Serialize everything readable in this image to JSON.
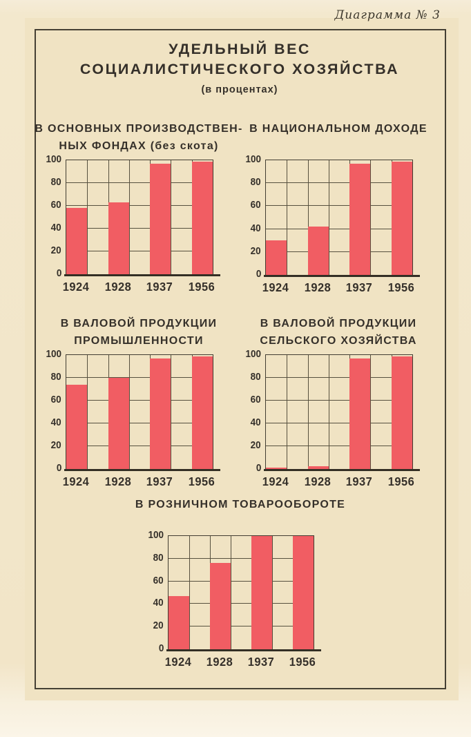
{
  "document": {
    "corner_label": "Диаграмма № 3",
    "title_lines": [
      "УДЕЛЬНЫЙ ВЕС",
      "СОЦИАЛИСТИЧЕСКОГО ХОЗЯЙСТВА"
    ],
    "subtitle": "(в процентах)"
  },
  "colors": {
    "bar_red": "#f15d63",
    "paper": "#f0e3c3",
    "ink": "#322d23",
    "grid_line": "#56503e"
  },
  "chart_data": [
    {
      "type": "bar",
      "title": "В ОСНОВНЫХ ПРОИЗВОДСТВЕННЫХ ФОНДАХ (без скота)",
      "title_lines": [
        "В ОСНОВНЫХ ПРОИЗВОДСТВЕН-",
        "НЫХ ФОНДАХ (без скота)"
      ],
      "categories": [
        "1924",
        "1928",
        "1937",
        "1956"
      ],
      "values": [
        58,
        63,
        97,
        99
      ],
      "ylim": [
        0,
        100
      ],
      "yticks": [
        0,
        20,
        40,
        60,
        80,
        100
      ],
      "grid": true,
      "legend": null
    },
    {
      "type": "bar",
      "title": "В НАЦИОНАЛЬНОМ ДОХОДЕ",
      "title_lines": [
        "В НАЦИОНАЛЬНОМ ДОХОДЕ"
      ],
      "categories": [
        "1924",
        "1928",
        "1937",
        "1956"
      ],
      "values": [
        30,
        42,
        97,
        99
      ],
      "ylim": [
        0,
        100
      ],
      "yticks": [
        0,
        20,
        40,
        60,
        80,
        100
      ],
      "grid": true,
      "legend": null
    },
    {
      "type": "bar",
      "title": "В ВАЛОВОЙ ПРОДУКЦИИ ПРОМЫШЛЕННОСТИ",
      "title_lines": [
        "В ВАЛОВОЙ ПРОДУКЦИИ",
        "ПРОМЫШЛЕННОСТИ"
      ],
      "categories": [
        "1924",
        "1928",
        "1937",
        "1956"
      ],
      "values": [
        74,
        80,
        97,
        99
      ],
      "ylim": [
        0,
        100
      ],
      "yticks": [
        0,
        20,
        40,
        60,
        80,
        100
      ],
      "grid": true,
      "legend": null
    },
    {
      "type": "bar",
      "title": "В ВАЛОВОЙ ПРОДУКЦИИ СЕЛЬСКОГО ХОЗЯЙСТВА",
      "title_lines": [
        "В ВАЛОВОЙ ПРОДУКЦИИ",
        "СЕЛЬСКОГО ХОЗЯЙСТВА"
      ],
      "categories": [
        "1924",
        "1928",
        "1937",
        "1956"
      ],
      "values": [
        1.5,
        2.5,
        97,
        99
      ],
      "ylim": [
        0,
        100
      ],
      "yticks": [
        0,
        20,
        40,
        60,
        80,
        100
      ],
      "grid": true,
      "legend": null
    },
    {
      "type": "bar",
      "title": "В РОЗНИЧНОМ ТОВАРООБОРОТЕ",
      "title_lines": [
        "В РОЗНИЧНОМ ТОВАРООБОРОТЕ"
      ],
      "categories": [
        "1924",
        "1928",
        "1937",
        "1956"
      ],
      "values": [
        47,
        76,
        100,
        100
      ],
      "ylim": [
        0,
        100
      ],
      "yticks": [
        0,
        20,
        40,
        60,
        80,
        100
      ],
      "grid": true,
      "legend": null
    }
  ]
}
